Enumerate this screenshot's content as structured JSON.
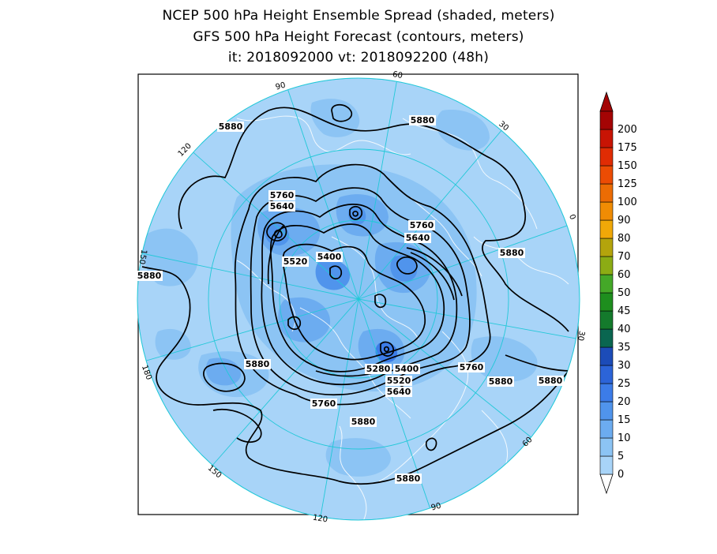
{
  "title": {
    "line1": "NCEP 500 hPa Height Ensemble Spread (shaded, meters)",
    "line2": "GFS 500 hPa Height Forecast (contours, meters)",
    "line3": "it: 2018092000       vt: 2018092200 (48h)"
  },
  "longitude_labels": [
    "60",
    "30",
    "0",
    "30",
    "60",
    "90",
    "120",
    "150",
    "180",
    "150",
    "120",
    "90"
  ],
  "contour_labels": [
    "5880",
    "5880",
    "5880",
    "5880",
    "5880",
    "5880",
    "5880",
    "5880",
    "5880",
    "5760",
    "5640",
    "5520",
    "5400",
    "5760",
    "5640",
    "5760",
    "5280",
    "5400",
    "5520",
    "5640",
    "5760"
  ],
  "colorbar": {
    "levels": [
      "0",
      "5",
      "10",
      "15",
      "20",
      "25",
      "30",
      "35",
      "40",
      "45",
      "50",
      "60",
      "70",
      "80",
      "90",
      "100",
      "125",
      "150",
      "175",
      "200"
    ],
    "colors": [
      "#a8d4f8",
      "#8cc4f4",
      "#6cacf0",
      "#5094ec",
      "#3c7ce8",
      "#2c64d8",
      "#1c4cb8",
      "#0a6650",
      "#147a2c",
      "#1e8e1e",
      "#44a828",
      "#8cac14",
      "#b4a40c",
      "#f0a808",
      "#f08c04",
      "#ec6c04",
      "#ec4c04",
      "#e02c04",
      "#c81404",
      "#a40404"
    ]
  }
}
